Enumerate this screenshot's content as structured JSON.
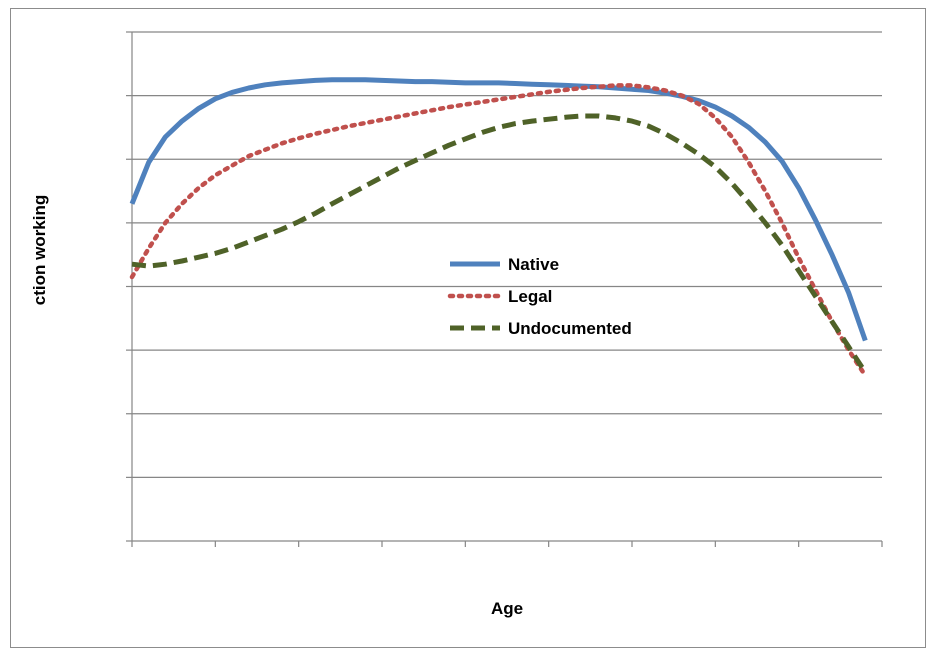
{
  "colors": {
    "native": "#4f81bd",
    "legal": "#c0504d",
    "undocumented": "#4f6228",
    "gridline": "#868686",
    "axis": "#868686"
  },
  "chart_data": {
    "type": "line",
    "title": "",
    "xlabel": "Age",
    "ylabel": "ction working",
    "xlim": [
      0,
      45
    ],
    "ylim": [
      0,
      8
    ],
    "x_ticks": 9,
    "y_gridlines": 8,
    "grid": true,
    "legend_position": "center",
    "series": [
      {
        "name": "Native",
        "color": "#4f81bd",
        "dash": "solid",
        "x": [
          0,
          1,
          2,
          3,
          4,
          5,
          6,
          7,
          8,
          9,
          10,
          11,
          12,
          13,
          14,
          15,
          16,
          17,
          18,
          19,
          20,
          21,
          22,
          23,
          24,
          25,
          26,
          27,
          28,
          29,
          30,
          31,
          32,
          33,
          34,
          35,
          36,
          37,
          38,
          39,
          40,
          41,
          42,
          43,
          44
        ],
        "values": [
          5.3,
          5.95,
          6.35,
          6.6,
          6.8,
          6.95,
          7.05,
          7.12,
          7.17,
          7.2,
          7.22,
          7.24,
          7.25,
          7.25,
          7.25,
          7.24,
          7.23,
          7.22,
          7.22,
          7.21,
          7.2,
          7.2,
          7.2,
          7.19,
          7.18,
          7.17,
          7.16,
          7.15,
          7.14,
          7.12,
          7.1,
          7.08,
          7.04,
          6.99,
          6.92,
          6.82,
          6.68,
          6.5,
          6.27,
          5.97,
          5.55,
          5.05,
          4.5,
          3.9,
          3.15
        ]
      },
      {
        "name": "Legal",
        "color": "#c0504d",
        "dash": "dotted",
        "x": [
          0,
          1,
          2,
          3,
          4,
          5,
          6,
          7,
          8,
          9,
          10,
          11,
          12,
          13,
          14,
          15,
          16,
          17,
          18,
          19,
          20,
          21,
          22,
          23,
          24,
          25,
          26,
          27,
          28,
          29,
          30,
          31,
          32,
          33,
          34,
          35,
          36,
          37,
          38,
          39,
          40,
          41,
          42,
          43,
          44
        ],
        "values": [
          4.15,
          4.6,
          5.0,
          5.3,
          5.55,
          5.75,
          5.9,
          6.05,
          6.15,
          6.25,
          6.33,
          6.4,
          6.46,
          6.52,
          6.57,
          6.62,
          6.67,
          6.72,
          6.77,
          6.82,
          6.86,
          6.9,
          6.94,
          6.98,
          7.02,
          7.06,
          7.09,
          7.12,
          7.14,
          7.16,
          7.16,
          7.13,
          7.08,
          7.0,
          6.87,
          6.65,
          6.35,
          5.95,
          5.5,
          5.0,
          4.45,
          3.95,
          3.45,
          3.0,
          2.6
        ]
      },
      {
        "name": "Undocumented",
        "color": "#4f6228",
        "dash": "dashed",
        "x": [
          0,
          1,
          2,
          3,
          4,
          5,
          6,
          7,
          8,
          9,
          10,
          11,
          12,
          13,
          14,
          15,
          16,
          17,
          18,
          19,
          20,
          21,
          22,
          23,
          24,
          25,
          26,
          27,
          28,
          29,
          30,
          31,
          32,
          33,
          34,
          35,
          36,
          37,
          38,
          39,
          40,
          41,
          42,
          43,
          44
        ],
        "values": [
          4.35,
          4.32,
          4.35,
          4.4,
          4.46,
          4.52,
          4.6,
          4.7,
          4.8,
          4.9,
          5.02,
          5.15,
          5.3,
          5.44,
          5.58,
          5.72,
          5.86,
          5.98,
          6.1,
          6.22,
          6.32,
          6.42,
          6.5,
          6.56,
          6.6,
          6.63,
          6.66,
          6.68,
          6.68,
          6.65,
          6.6,
          6.52,
          6.4,
          6.25,
          6.08,
          5.88,
          5.62,
          5.32,
          5.0,
          4.65,
          4.25,
          3.85,
          3.45,
          3.05,
          2.65
        ]
      }
    ]
  }
}
